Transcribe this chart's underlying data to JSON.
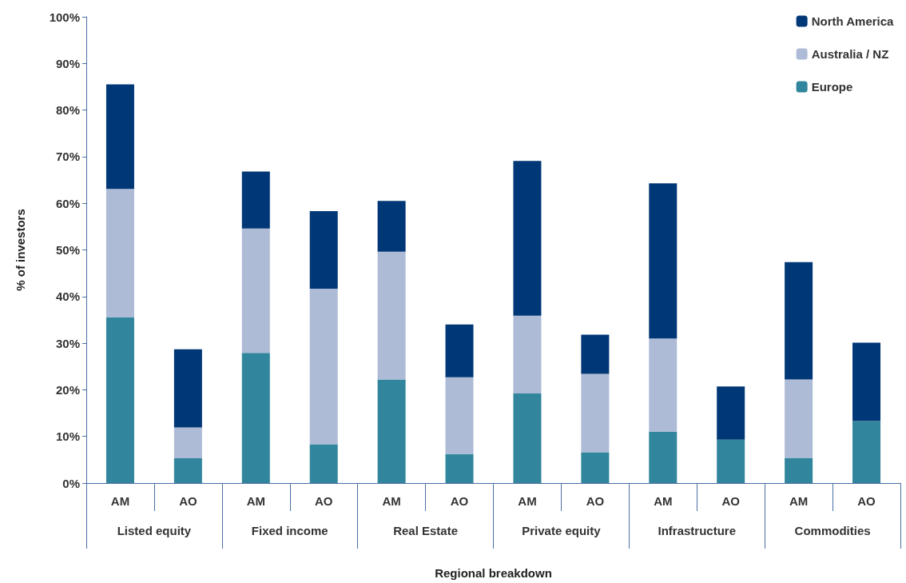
{
  "chart_data": {
    "type": "bar",
    "stacked": true,
    "xlabel": "Regional breakdown",
    "ylabel": "% of investors",
    "categories": [
      "AM",
      "AO",
      "AM",
      "AO",
      "AM",
      "AO",
      "AM",
      "AO",
      "AM",
      "AO",
      "AM",
      "AO"
    ],
    "series": [
      {
        "name": "Europe",
        "color": "#31859c",
        "values": [
          35.5,
          5.3,
          27.9,
          8.3,
          22.2,
          6.2,
          19.2,
          6.6,
          11.0,
          9.3,
          5.4,
          13.3
        ]
      },
      {
        "name": "Australia / NZ",
        "color": "#adbbd6",
        "values": [
          27.6,
          6.6,
          26.7,
          33.4,
          27.4,
          16.5,
          16.7,
          16.8,
          20.0,
          0,
          16.8,
          0
        ]
      },
      {
        "name": "North America",
        "color": "#003776",
        "values": [
          22.4,
          16.8,
          12.2,
          16.6,
          10.9,
          11.3,
          33.2,
          8.4,
          33.3,
          11.4,
          25.2,
          16.8
        ]
      }
    ],
    "ylim": [
      0,
      100
    ],
    "yticks": [
      {
        "value": 0,
        "label": "0%"
      },
      {
        "value": 10,
        "label": "10%"
      },
      {
        "value": 20,
        "label": "20%"
      },
      {
        "value": 30,
        "label": "30%"
      },
      {
        "value": 40,
        "label": "40%"
      },
      {
        "value": 50,
        "label": "50%"
      },
      {
        "value": 60,
        "label": "60%"
      },
      {
        "value": 70,
        "label": "70%"
      },
      {
        "value": 80,
        "label": "80%"
      },
      {
        "value": 90,
        "label": "90%"
      },
      {
        "value": 100,
        "label": "100%"
      }
    ],
    "annotations": [
      "Listed equity",
      "Fixed income",
      "Real Estate",
      "Private equity",
      "Infrastructure",
      "Commodities"
    ],
    "grid": false,
    "legend": "top right"
  }
}
